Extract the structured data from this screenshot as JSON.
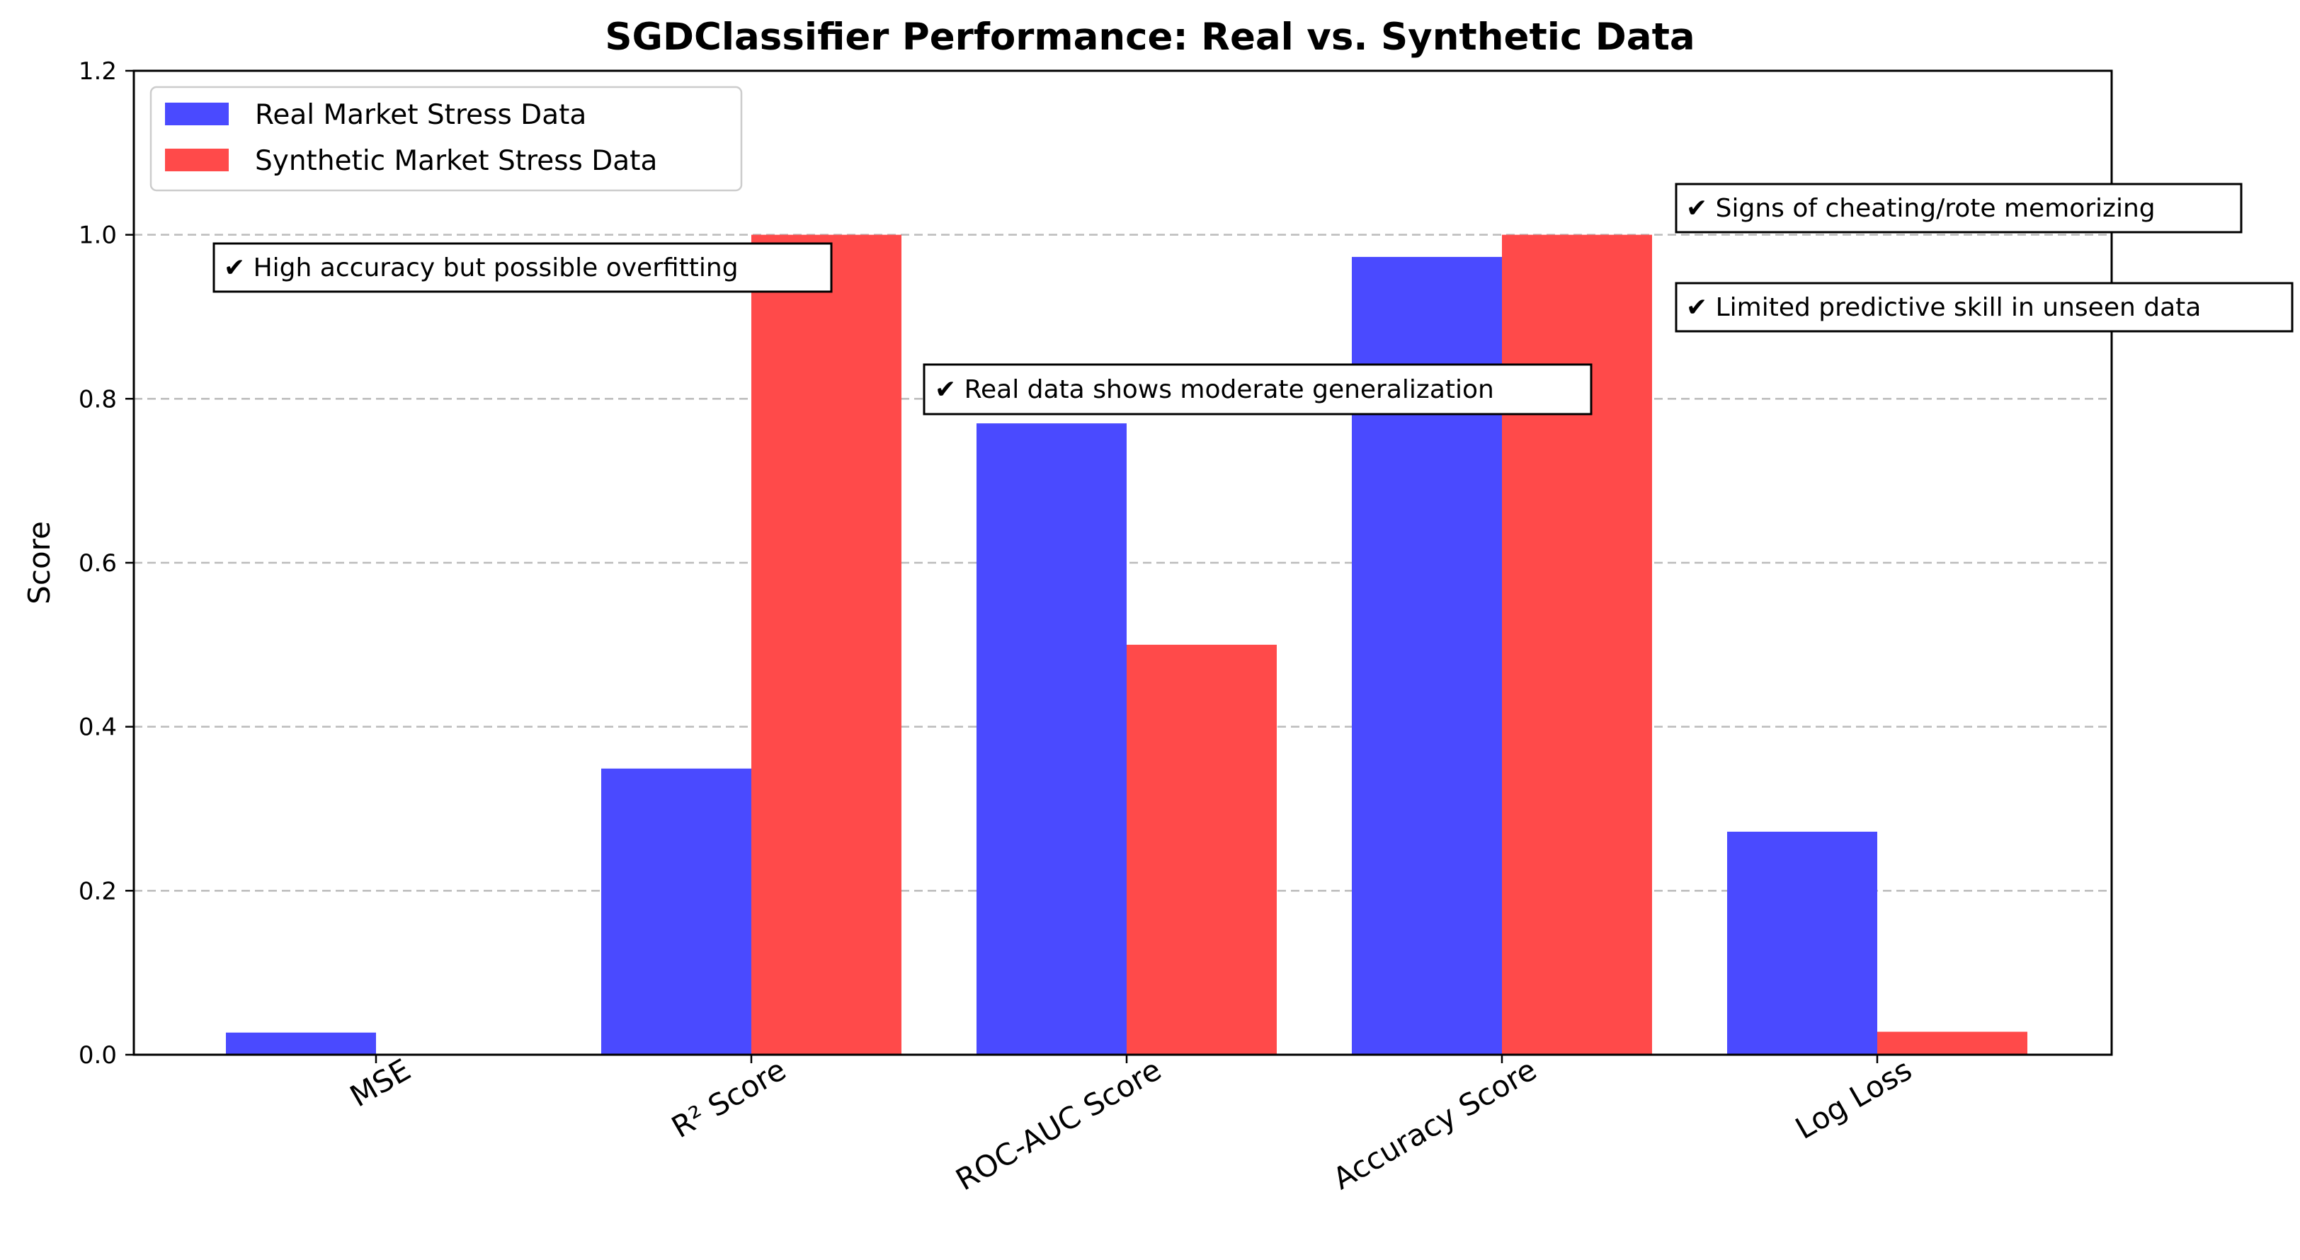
{
  "chart_data": {
    "type": "bar",
    "title": "SGDClassifier Performance: Real vs. Synthetic Data",
    "xlabel": "",
    "ylabel": "Score",
    "categories": [
      "MSE",
      "R² Score",
      "ROC-AUC Score",
      "Accuracy Score",
      "Log Loss"
    ],
    "series": [
      {
        "name": "Real Market Stress Data",
        "color": "#4a4aff",
        "values": [
          0.027,
          0.349,
          0.77,
          0.973,
          0.272
        ]
      },
      {
        "name": "Synthetic Market Stress Data",
        "color": "#ff4a4a",
        "values": [
          0.0,
          1.0,
          0.5,
          1.0,
          0.028
        ]
      }
    ],
    "ylim": [
      0,
      1.2
    ],
    "yticks": [
      "0.0",
      "0.2",
      "0.4",
      "0.6",
      "0.8",
      "1.0",
      "1.2"
    ],
    "grid": "y-dashed",
    "legend_position": "top-left",
    "annotations": [
      "✔ High accuracy but possible overfitting",
      "✔ Real data shows moderate generalization",
      "✔ Signs of cheating/rote memorizing",
      "✔ Limited predictive skill in unseen data"
    ]
  }
}
